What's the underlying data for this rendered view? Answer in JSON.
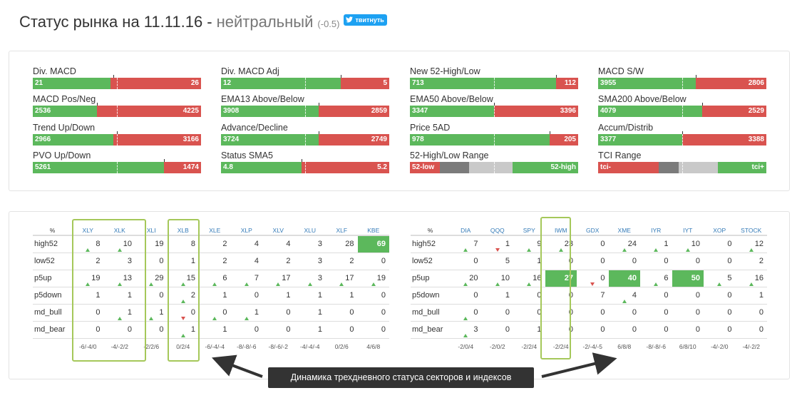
{
  "header": {
    "title": "Статус рынка на 11.11.16 -",
    "status": "нейтральный",
    "score": "(-0.5)",
    "tweet_label": "твитнуть"
  },
  "indicators": [
    {
      "label": "Div. MACD",
      "left": "21",
      "right": "26",
      "green_pct": 46,
      "tick_pct": 48
    },
    {
      "label": "Div. MACD Adj",
      "left": "12",
      "right": "5",
      "green_pct": 71,
      "tick_pct": 71
    },
    {
      "label": "New 52-High/Low",
      "left": "713",
      "right": "112",
      "green_pct": 87,
      "tick_pct": 87
    },
    {
      "label": "MACD S/W",
      "left": "3955",
      "right": "2806",
      "green_pct": 58,
      "tick_pct": 58
    },
    {
      "label": "MACD Pos/Neg",
      "left": "2536",
      "right": "4225",
      "green_pct": 38,
      "tick_pct": 38
    },
    {
      "label": "EMA13 Above/Below",
      "left": "3908",
      "right": "2859",
      "green_pct": 58,
      "tick_pct": 58
    },
    {
      "label": "EMA50 Above/Below",
      "left": "3347",
      "right": "3396",
      "green_pct": 50,
      "tick_pct": 50
    },
    {
      "label": "SMA200 Above/Below",
      "left": "4079",
      "right": "2529",
      "green_pct": 62,
      "tick_pct": 62
    },
    {
      "label": "Trend Up/Down",
      "left": "2966",
      "right": "3166",
      "green_pct": 48,
      "tick_pct": 50
    },
    {
      "label": "Advance/Decline",
      "left": "3724",
      "right": "2749",
      "green_pct": 58,
      "tick_pct": 58
    },
    {
      "label": "Price 5AD",
      "left": "978",
      "right": "205",
      "green_pct": 83,
      "tick_pct": 83
    },
    {
      "label": "Accum/Distrib",
      "left": "3377",
      "right": "3388",
      "green_pct": 50,
      "tick_pct": 50
    },
    {
      "label": "PVO Up/Down",
      "left": "5261",
      "right": "1474",
      "green_pct": 78,
      "tick_pct": 78
    },
    {
      "label": "Status SMA5",
      "left": "4.8",
      "right": "5.2",
      "green_pct": 48,
      "tick_pct": 48
    }
  ],
  "ranges": [
    {
      "label": "52-High/Low Range",
      "left": "52-low",
      "right": "52-high",
      "type": "green-right"
    },
    {
      "label": "TCI Range",
      "left": "tci-",
      "right": "tci+",
      "type": "red-left"
    }
  ],
  "sectors": {
    "headers": [
      "%",
      "XLY",
      "XLK",
      "XLI",
      "XLB",
      "XLE",
      "XLP",
      "XLV",
      "XLU",
      "XLF",
      "KBE"
    ],
    "rows": [
      {
        "label": "high52",
        "cells": [
          "8",
          "10",
          "19",
          "8",
          "2",
          "4",
          "4",
          "3",
          "28",
          "69"
        ],
        "arrows": [
          "up",
          "up",
          "",
          "",
          "",
          "",
          "",
          "",
          "",
          "up"
        ],
        "hl": [
          9
        ]
      },
      {
        "label": "low52",
        "cells": [
          "2",
          "3",
          "0",
          "1",
          "2",
          "4",
          "2",
          "3",
          "2",
          "0"
        ],
        "arrows": [
          "",
          "",
          "",
          "",
          "",
          "",
          "",
          "",
          "",
          ""
        ],
        "hl": []
      },
      {
        "label": "p5up",
        "cells": [
          "19",
          "13",
          "29",
          "15",
          "6",
          "7",
          "17",
          "3",
          "17",
          "19"
        ],
        "arrows": [
          "up",
          "up",
          "up",
          "up",
          "up",
          "up",
          "up",
          "up",
          "up",
          "up"
        ],
        "hl": []
      },
      {
        "label": "p5down",
        "cells": [
          "1",
          "1",
          "0",
          "2",
          "1",
          "0",
          "1",
          "1",
          "1",
          "0"
        ],
        "arrows": [
          "",
          "",
          "",
          "up",
          "",
          "",
          "",
          "",
          "",
          ""
        ],
        "hl": []
      },
      {
        "label": "md_bull",
        "cells": [
          "0",
          "1",
          "1",
          "0",
          "0",
          "1",
          "0",
          "1",
          "0",
          "0"
        ],
        "arrows": [
          "",
          "up",
          "up",
          "dn",
          "up",
          "up",
          "",
          "",
          "",
          ""
        ],
        "hl": []
      },
      {
        "label": "md_bear",
        "cells": [
          "0",
          "0",
          "0",
          "1",
          "1",
          "0",
          "0",
          "1",
          "0",
          "0"
        ],
        "arrows": [
          "",
          "",
          "",
          "up",
          "",
          "",
          "",
          "",
          "",
          ""
        ],
        "hl": []
      }
    ],
    "footer": [
      "-6/-4/0",
      "-4/-2/2",
      "-2/2/6",
      "0/2/4",
      "-6/-4/-4",
      "-8/-8/-6",
      "-8/-6/-2",
      "-4/-4/-4",
      "0/2/6",
      "4/6/8"
    ]
  },
  "indexes": {
    "headers": [
      "%",
      "DIA",
      "QQQ",
      "SPY",
      "IWM",
      "GDX",
      "XME",
      "IYR",
      "IYT",
      "XOP",
      "STOCK"
    ],
    "rows": [
      {
        "label": "high52",
        "cells": [
          "7",
          "1",
          "9",
          "23",
          "0",
          "24",
          "1",
          "10",
          "0",
          "12"
        ],
        "arrows": [
          "up",
          "dn",
          "up",
          "up",
          "",
          "up",
          "up",
          "up",
          "",
          "up"
        ],
        "hl": []
      },
      {
        "label": "low52",
        "cells": [
          "0",
          "5",
          "1",
          "0",
          "0",
          "0",
          "0",
          "0",
          "0",
          "2"
        ],
        "arrows": [
          "",
          "",
          "",
          "",
          "",
          "",
          "",
          "",
          "",
          ""
        ],
        "hl": []
      },
      {
        "label": "p5up",
        "cells": [
          "20",
          "10",
          "16",
          "27",
          "0",
          "40",
          "6",
          "50",
          "5",
          "16"
        ],
        "arrows": [
          "up",
          "up",
          "up",
          "",
          "dn",
          "",
          "up",
          "",
          "up",
          "up"
        ],
        "hl": [
          3,
          5,
          7
        ]
      },
      {
        "label": "p5down",
        "cells": [
          "0",
          "1",
          "0",
          "0",
          "7",
          "4",
          "0",
          "0",
          "0",
          "1"
        ],
        "arrows": [
          "",
          "",
          "",
          "",
          "",
          "up",
          "",
          "",
          "",
          ""
        ],
        "hl": []
      },
      {
        "label": "md_bull",
        "cells": [
          "0",
          "0",
          "0",
          "0",
          "0",
          "0",
          "0",
          "0",
          "0",
          "0"
        ],
        "arrows": [
          "up",
          "",
          "",
          "",
          "",
          "",
          "",
          "",
          "",
          ""
        ],
        "hl": []
      },
      {
        "label": "md_bear",
        "cells": [
          "3",
          "0",
          "1",
          "0",
          "0",
          "0",
          "0",
          "0",
          "0",
          "0"
        ],
        "arrows": [
          "up",
          "",
          "",
          "",
          "",
          "",
          "",
          "",
          "",
          ""
        ],
        "hl": []
      }
    ],
    "footer": [
      "-2/0/4",
      "-2/0/2",
      "-2/2/4",
      "-2/2/4",
      "-2/-4/-5",
      "6/8/8",
      "-8/-8/-6",
      "6/8/10",
      "-4/-2/0",
      "-4/-2/2"
    ]
  },
  "annotation": "Динамика трехдневного статуса секторов и индексов",
  "colors": {
    "green": "#5cb85c",
    "red": "#d9534f",
    "highlight_box": "#a5c85a",
    "link": "#337ab7"
  }
}
